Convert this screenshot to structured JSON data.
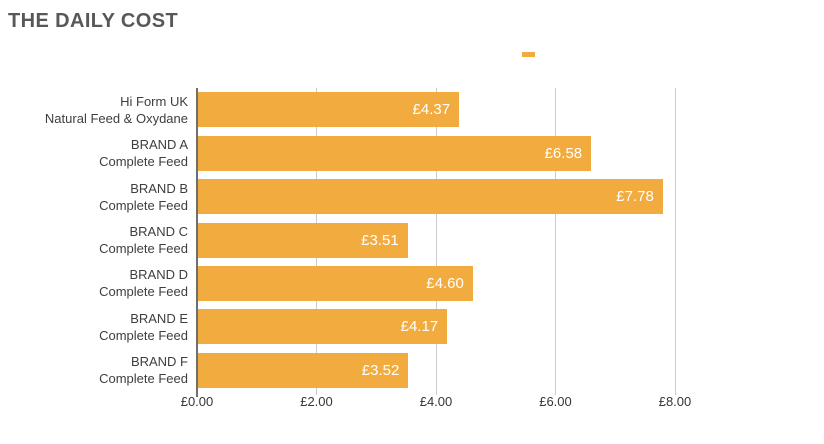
{
  "title": "THE DAILY COST",
  "legend": {
    "series_label": "",
    "marker": "orange-swatch"
  },
  "colors": {
    "bar": "#f2ab3f",
    "title_text": "#57585a",
    "axis_text": "#363636",
    "category_text": "#3e3e3e",
    "gridline": "#cbcbcb",
    "axis_line": "#6f6f6f",
    "value_text": "#ffffff"
  },
  "chart_data": {
    "type": "bar",
    "orientation": "horizontal",
    "title": "THE DAILY COST",
    "categories": [
      [
        "Hi Form UK",
        "Natural Feed & Oxydane"
      ],
      [
        "BRAND A",
        "Complete Feed"
      ],
      [
        "BRAND B",
        "Complete Feed"
      ],
      [
        "BRAND C",
        "Complete Feed"
      ],
      [
        "BRAND D",
        "Complete Feed"
      ],
      [
        "BRAND E",
        "Complete Feed"
      ],
      [
        "BRAND F",
        "Complete Feed"
      ]
    ],
    "values": [
      4.37,
      6.58,
      7.78,
      3.51,
      4.6,
      4.17,
      3.52
    ],
    "value_labels": [
      "£4.37",
      "£6.58",
      "£7.78",
      "£3.51",
      "£4.60",
      "£4.17",
      "£3.52"
    ],
    "xlabel": "",
    "ylabel": "",
    "xlim": [
      0,
      8
    ],
    "x_ticks": [
      0,
      2,
      4,
      6,
      8
    ],
    "x_tick_labels": [
      "£0.00",
      "£2.00",
      "£4.00",
      "£6.00",
      "£8.00"
    ],
    "grid": true,
    "legend_position": "top-center",
    "data_labels": "inside-end"
  }
}
